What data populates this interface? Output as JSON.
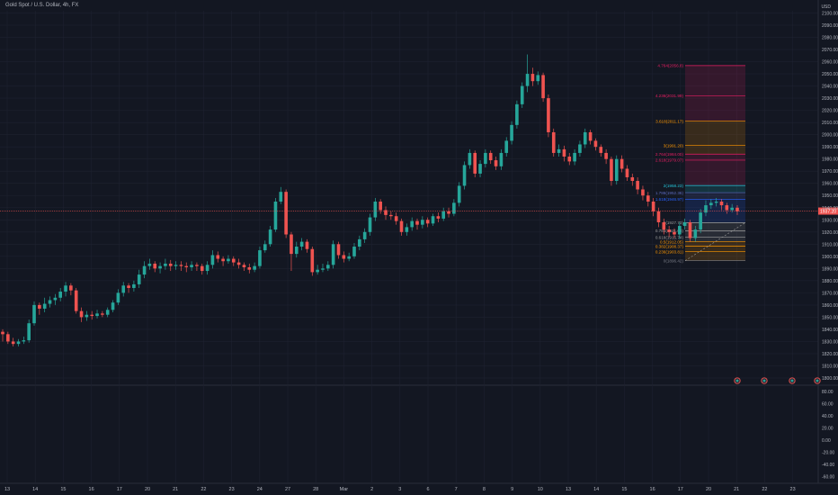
{
  "header": {
    "symbol_title": "Gold Spot / U.S. Dollar, 4h, FX"
  },
  "colors": {
    "background": "#131722",
    "grid": "#1e2230",
    "up": "#26a69a",
    "down": "#ef5350",
    "axis_text": "#b2b5be",
    "last_price_line": "#ef5350",
    "last_price_bg": "#ef5350"
  },
  "price_axis": {
    "top_label": "USD",
    "ticks": [
      "2100.00",
      "2090.00",
      "2080.00",
      "2070.00",
      "2060.00",
      "2050.00",
      "2040.00",
      "2030.00",
      "2020.00",
      "2010.00",
      "2000.00",
      "1990.00",
      "1980.00",
      "1970.00",
      "1960.00",
      "1950.00",
      "1940.00",
      "1930.00",
      "1920.00",
      "1910.00",
      "1900.00",
      "1890.00",
      "1880.00",
      "1870.00",
      "1860.00",
      "1850.00",
      "1840.00",
      "1830.00",
      "1820.00",
      "1810.00",
      "1800.00"
    ],
    "last_price": "1937.20"
  },
  "indicator_axis": {
    "ticks": [
      "80.00",
      "60.00",
      "40.00",
      "20.00",
      "0.00",
      "-20.00",
      "-40.00",
      "-60.00"
    ]
  },
  "time_axis": {
    "labels": [
      "13",
      "14",
      "15",
      "16",
      "17",
      "20",
      "21",
      "22",
      "23",
      "24",
      "27",
      "28",
      "Mar",
      "2",
      "3",
      "6",
      "7",
      "8",
      "9",
      "10",
      "13",
      "14",
      "15",
      "16",
      "17",
      "20",
      "21",
      "22",
      "23"
    ]
  },
  "fibonacci": {
    "levels": [
      {
        "label": "4.764(2056.8)",
        "value": 2056.8,
        "color": "#e91e63"
      },
      {
        "label": "4.236(2031.99)",
        "value": 2031.99,
        "color": "#e91e63"
      },
      {
        "label": "3.618(2011.17)",
        "value": 2011.17,
        "color": "#ff9800"
      },
      {
        "label": "3(1991.20)",
        "value": 1991.2,
        "color": "#ff9800"
      },
      {
        "label": "2.764(1984.00)",
        "value": 1984.0,
        "color": "#e91e63"
      },
      {
        "label": "2.618(1979.07)",
        "value": 1979.07,
        "color": "#e91e63"
      },
      {
        "label": "2(1958.23)",
        "value": 1958.23,
        "color": "#26c6da"
      },
      {
        "label": "1.786(1952.36)",
        "value": 1952.36,
        "color": "#5c6bc0"
      },
      {
        "label": "1.618(1946.97)",
        "value": 1946.97,
        "color": "#2962ff"
      },
      {
        "label": "1(1927.73)",
        "value": 1927.73,
        "color": "#9e9e9e"
      },
      {
        "label": "0.786(1921.03)",
        "value": 1921.03,
        "color": "#9e9e9e"
      },
      {
        "label": "0.618(1915.74)",
        "value": 1915.74,
        "color": "#9e9e9e"
      },
      {
        "label": "0.5(1912.05)",
        "value": 1912.05,
        "color": "#ff9800"
      },
      {
        "label": "0.382(1908.37)",
        "value": 1908.37,
        "color": "#ff9800"
      },
      {
        "label": "0.236(1903.81)",
        "value": 1903.81,
        "color": "#ff9800"
      },
      {
        "label": "0(1896.42)",
        "value": 1896.42,
        "color": "#787b86"
      }
    ]
  },
  "chart_data": {
    "type": "candlestick",
    "title": "Gold Spot / U.S. Dollar, 4h, FX",
    "ylim": [
      1800,
      2100
    ],
    "y_unit": "USD",
    "candles": [
      [
        1838,
        1836,
        1840,
        1830
      ],
      [
        1836,
        1830,
        1838,
        1828
      ],
      [
        1830,
        1828,
        1833,
        1826
      ],
      [
        1828,
        1830,
        1832,
        1826
      ],
      [
        1830,
        1831,
        1834,
        1828
      ],
      [
        1831,
        1845,
        1848,
        1829
      ],
      [
        1845,
        1860,
        1863,
        1843
      ],
      [
        1860,
        1857,
        1862,
        1852
      ],
      [
        1857,
        1861,
        1866,
        1854
      ],
      [
        1861,
        1864,
        1867,
        1858
      ],
      [
        1864,
        1866,
        1869,
        1860
      ],
      [
        1866,
        1871,
        1874,
        1863
      ],
      [
        1871,
        1876,
        1879,
        1867
      ],
      [
        1876,
        1872,
        1878,
        1868
      ],
      [
        1872,
        1855,
        1874,
        1853
      ],
      [
        1855,
        1850,
        1858,
        1846
      ],
      [
        1850,
        1852,
        1855,
        1847
      ],
      [
        1852,
        1851,
        1855,
        1848
      ],
      [
        1851,
        1853,
        1856,
        1849
      ],
      [
        1853,
        1852,
        1855,
        1850
      ],
      [
        1852,
        1856,
        1858,
        1850
      ],
      [
        1856,
        1862,
        1864,
        1854
      ],
      [
        1862,
        1870,
        1873,
        1860
      ],
      [
        1870,
        1876,
        1879,
        1867
      ],
      [
        1876,
        1874,
        1878,
        1870
      ],
      [
        1874,
        1877,
        1880,
        1871
      ],
      [
        1877,
        1885,
        1889,
        1874
      ],
      [
        1885,
        1892,
        1896,
        1882
      ],
      [
        1892,
        1894,
        1898,
        1889
      ],
      [
        1894,
        1890,
        1896,
        1887
      ],
      [
        1890,
        1892,
        1895,
        1886
      ],
      [
        1892,
        1894,
        1898,
        1889
      ],
      [
        1894,
        1892,
        1897,
        1888
      ],
      [
        1892,
        1893,
        1896,
        1889
      ],
      [
        1893,
        1892,
        1896,
        1888
      ],
      [
        1892,
        1891,
        1895,
        1887
      ],
      [
        1891,
        1893,
        1896,
        1888
      ],
      [
        1893,
        1892,
        1895,
        1888
      ],
      [
        1892,
        1888,
        1894,
        1885
      ],
      [
        1888,
        1893,
        1896,
        1885
      ],
      [
        1893,
        1901,
        1905,
        1890
      ],
      [
        1901,
        1898,
        1904,
        1895
      ],
      [
        1898,
        1896,
        1900,
        1892
      ],
      [
        1896,
        1898,
        1901,
        1894
      ],
      [
        1898,
        1895,
        1900,
        1892
      ],
      [
        1895,
        1893,
        1898,
        1890
      ],
      [
        1893,
        1891,
        1895,
        1888
      ],
      [
        1891,
        1889,
        1894,
        1886
      ],
      [
        1889,
        1892,
        1895,
        1887
      ],
      [
        1892,
        1905,
        1908,
        1890
      ],
      [
        1905,
        1910,
        1913,
        1903
      ],
      [
        1910,
        1922,
        1925,
        1908
      ],
      [
        1922,
        1945,
        1948,
        1920
      ],
      [
        1945,
        1953,
        1957,
        1943
      ],
      [
        1953,
        1918,
        1955,
        1915
      ],
      [
        1918,
        1902,
        1920,
        1888
      ],
      [
        1902,
        1908,
        1912,
        1899
      ],
      [
        1908,
        1912,
        1915,
        1905
      ],
      [
        1912,
        1906,
        1914,
        1903
      ],
      [
        1906,
        1887,
        1908,
        1884
      ],
      [
        1887,
        1889,
        1893,
        1885
      ],
      [
        1889,
        1890,
        1894,
        1887
      ],
      [
        1890,
        1893,
        1896,
        1888
      ],
      [
        1893,
        1910,
        1913,
        1890
      ],
      [
        1910,
        1901,
        1912,
        1898
      ],
      [
        1901,
        1898,
        1904,
        1895
      ],
      [
        1898,
        1900,
        1903,
        1896
      ],
      [
        1900,
        1908,
        1911,
        1898
      ],
      [
        1908,
        1914,
        1917,
        1905
      ],
      [
        1914,
        1920,
        1923,
        1911
      ],
      [
        1920,
        1932,
        1935,
        1917
      ],
      [
        1932,
        1945,
        1948,
        1929
      ],
      [
        1945,
        1938,
        1947,
        1935
      ],
      [
        1938,
        1934,
        1941,
        1930
      ],
      [
        1934,
        1933,
        1937,
        1930
      ],
      [
        1933,
        1929,
        1936,
        1926
      ],
      [
        1929,
        1920,
        1931,
        1917
      ],
      [
        1920,
        1924,
        1927,
        1917
      ],
      [
        1924,
        1929,
        1932,
        1921
      ],
      [
        1929,
        1926,
        1931,
        1922
      ],
      [
        1926,
        1930,
        1933,
        1923
      ],
      [
        1930,
        1927,
        1932,
        1924
      ],
      [
        1927,
        1933,
        1935,
        1925
      ],
      [
        1933,
        1931,
        1936,
        1928
      ],
      [
        1931,
        1937,
        1940,
        1929
      ],
      [
        1937,
        1935,
        1940,
        1932
      ],
      [
        1935,
        1944,
        1947,
        1933
      ],
      [
        1944,
        1958,
        1961,
        1941
      ],
      [
        1958,
        1975,
        1978,
        1955
      ],
      [
        1975,
        1985,
        1988,
        1972
      ],
      [
        1985,
        1968,
        1987,
        1965
      ],
      [
        1968,
        1976,
        1979,
        1965
      ],
      [
        1976,
        1985,
        1988,
        1973
      ],
      [
        1985,
        1979,
        1987,
        1976
      ],
      [
        1979,
        1974,
        1982,
        1971
      ],
      [
        1974,
        1985,
        1988,
        1971
      ],
      [
        1985,
        1995,
        1998,
        1982
      ],
      [
        1995,
        2008,
        2011,
        1992
      ],
      [
        2008,
        2025,
        2028,
        2005
      ],
      [
        2025,
        2040,
        2043,
        2022
      ],
      [
        2040,
        2050,
        2066,
        2035
      ],
      [
        2050,
        2044,
        2055,
        2040
      ],
      [
        2044,
        2049,
        2052,
        2041
      ],
      [
        2049,
        2030,
        2051,
        2027
      ],
      [
        2030,
        2002,
        2033,
        1998
      ],
      [
        2002,
        1985,
        2005,
        1982
      ],
      [
        1985,
        1988,
        1992,
        1982
      ],
      [
        1988,
        1982,
        1991,
        1978
      ],
      [
        1982,
        1978,
        1985,
        1975
      ],
      [
        1978,
        1985,
        1988,
        1975
      ],
      [
        1985,
        1992,
        1995,
        1982
      ],
      [
        1992,
        2002,
        2005,
        1989
      ],
      [
        2002,
        1995,
        2004,
        1992
      ],
      [
        1995,
        1990,
        1997,
        1987
      ],
      [
        1990,
        1985,
        1992,
        1982
      ],
      [
        1985,
        1980,
        1988,
        1976
      ],
      [
        1980,
        1962,
        1982,
        1958
      ],
      [
        1962,
        1980,
        1983,
        1959
      ],
      [
        1980,
        1972,
        1983,
        1969
      ],
      [
        1972,
        1965,
        1975,
        1962
      ],
      [
        1965,
        1962,
        1968,
        1958
      ],
      [
        1962,
        1955,
        1965,
        1951
      ],
      [
        1955,
        1950,
        1958,
        1946
      ],
      [
        1950,
        1945,
        1953,
        1941
      ],
      [
        1945,
        1937,
        1948,
        1933
      ],
      [
        1937,
        1928,
        1940,
        1924
      ],
      [
        1928,
        1922,
        1931,
        1918
      ],
      [
        1922,
        1920,
        1925,
        1916
      ],
      [
        1920,
        1918,
        1923,
        1915
      ],
      [
        1918,
        1925,
        1928,
        1914
      ],
      [
        1925,
        1928,
        1931,
        1922
      ],
      [
        1928,
        1915,
        1930,
        1912
      ],
      [
        1915,
        1922,
        1925,
        1912
      ],
      [
        1922,
        1936,
        1939,
        1919
      ],
      [
        1936,
        1942,
        1946,
        1933
      ],
      [
        1942,
        1944,
        1947,
        1939
      ],
      [
        1944,
        1945,
        1948,
        1941
      ],
      [
        1945,
        1942,
        1947,
        1938
      ],
      [
        1942,
        1938,
        1944,
        1935
      ],
      [
        1938,
        1940,
        1943,
        1936
      ],
      [
        1940,
        1937,
        1942,
        1934
      ]
    ]
  }
}
